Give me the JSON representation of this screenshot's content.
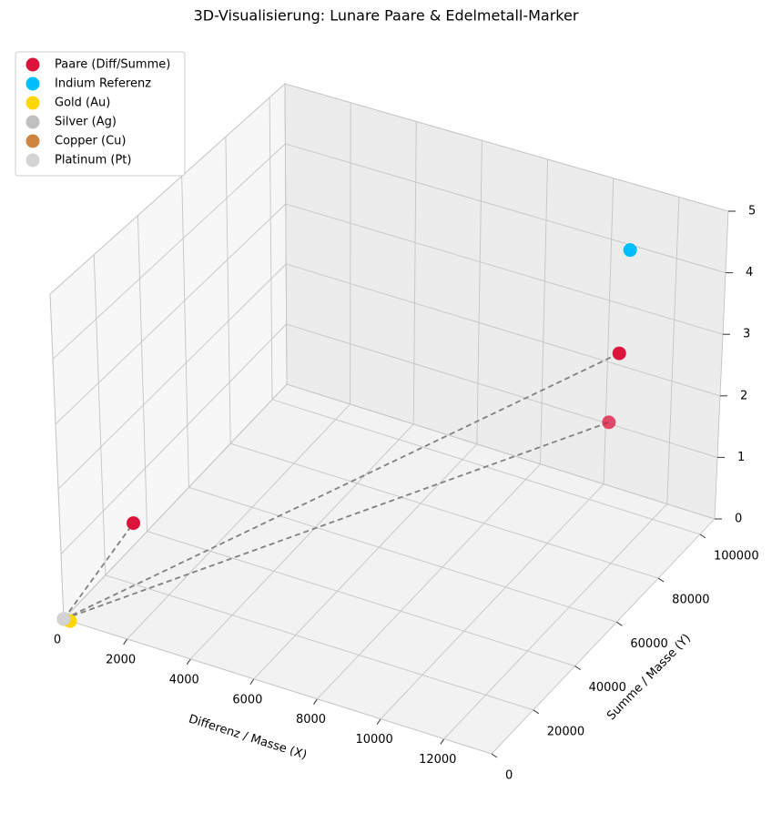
{
  "chart_data": {
    "type": "scatter3d",
    "title": "3D-Visualisierung: Lunare Paare & Edelmetall-Marker",
    "xlabel": "Differenz / Masse (X)",
    "ylabel": "Summe / Masse (Y)",
    "xlim": [
      0,
      13500
    ],
    "ylim": [
      0,
      107000
    ],
    "zlim": [
      0,
      5
    ],
    "xticks": [
      0,
      2000,
      4000,
      6000,
      8000,
      10000,
      12000
    ],
    "yticks": [
      0,
      20000,
      40000,
      60000,
      80000,
      100000
    ],
    "zticks": [
      0,
      1,
      2,
      3,
      4,
      5
    ],
    "grid": true,
    "legend": "upper left",
    "series": [
      {
        "name": "Paare (Diff/Summe)",
        "color": "#dc143c",
        "x": [
          1800,
          11530,
          11490
        ],
        "y": [
          7600,
          88500,
          85100
        ],
        "z": [
          1.5,
          3,
          2
        ]
      },
      {
        "name": "Indium Referenz",
        "color": "#00bfff",
        "x": [
          12080
        ],
        "y": [
          83600
        ],
        "z": [
          4.9
        ]
      },
      {
        "name": "Gold (Au)",
        "color": "#ffd700",
        "x": [
          200
        ],
        "y": [
          0
        ],
        "z": [
          0
        ]
      },
      {
        "name": "Silver (Ag)",
        "color": "#c0c0c0",
        "x": [
          0
        ],
        "y": [
          0
        ],
        "z": [
          0
        ]
      },
      {
        "name": "Copper (Cu)",
        "color": "#cd853f",
        "x": [
          0
        ],
        "y": [
          0
        ],
        "z": [
          0
        ]
      },
      {
        "name": "Platinum (Pt)",
        "color": "#d3d3d3",
        "x": [
          0
        ],
        "y": [
          0
        ],
        "z": [
          0
        ]
      }
    ]
  }
}
